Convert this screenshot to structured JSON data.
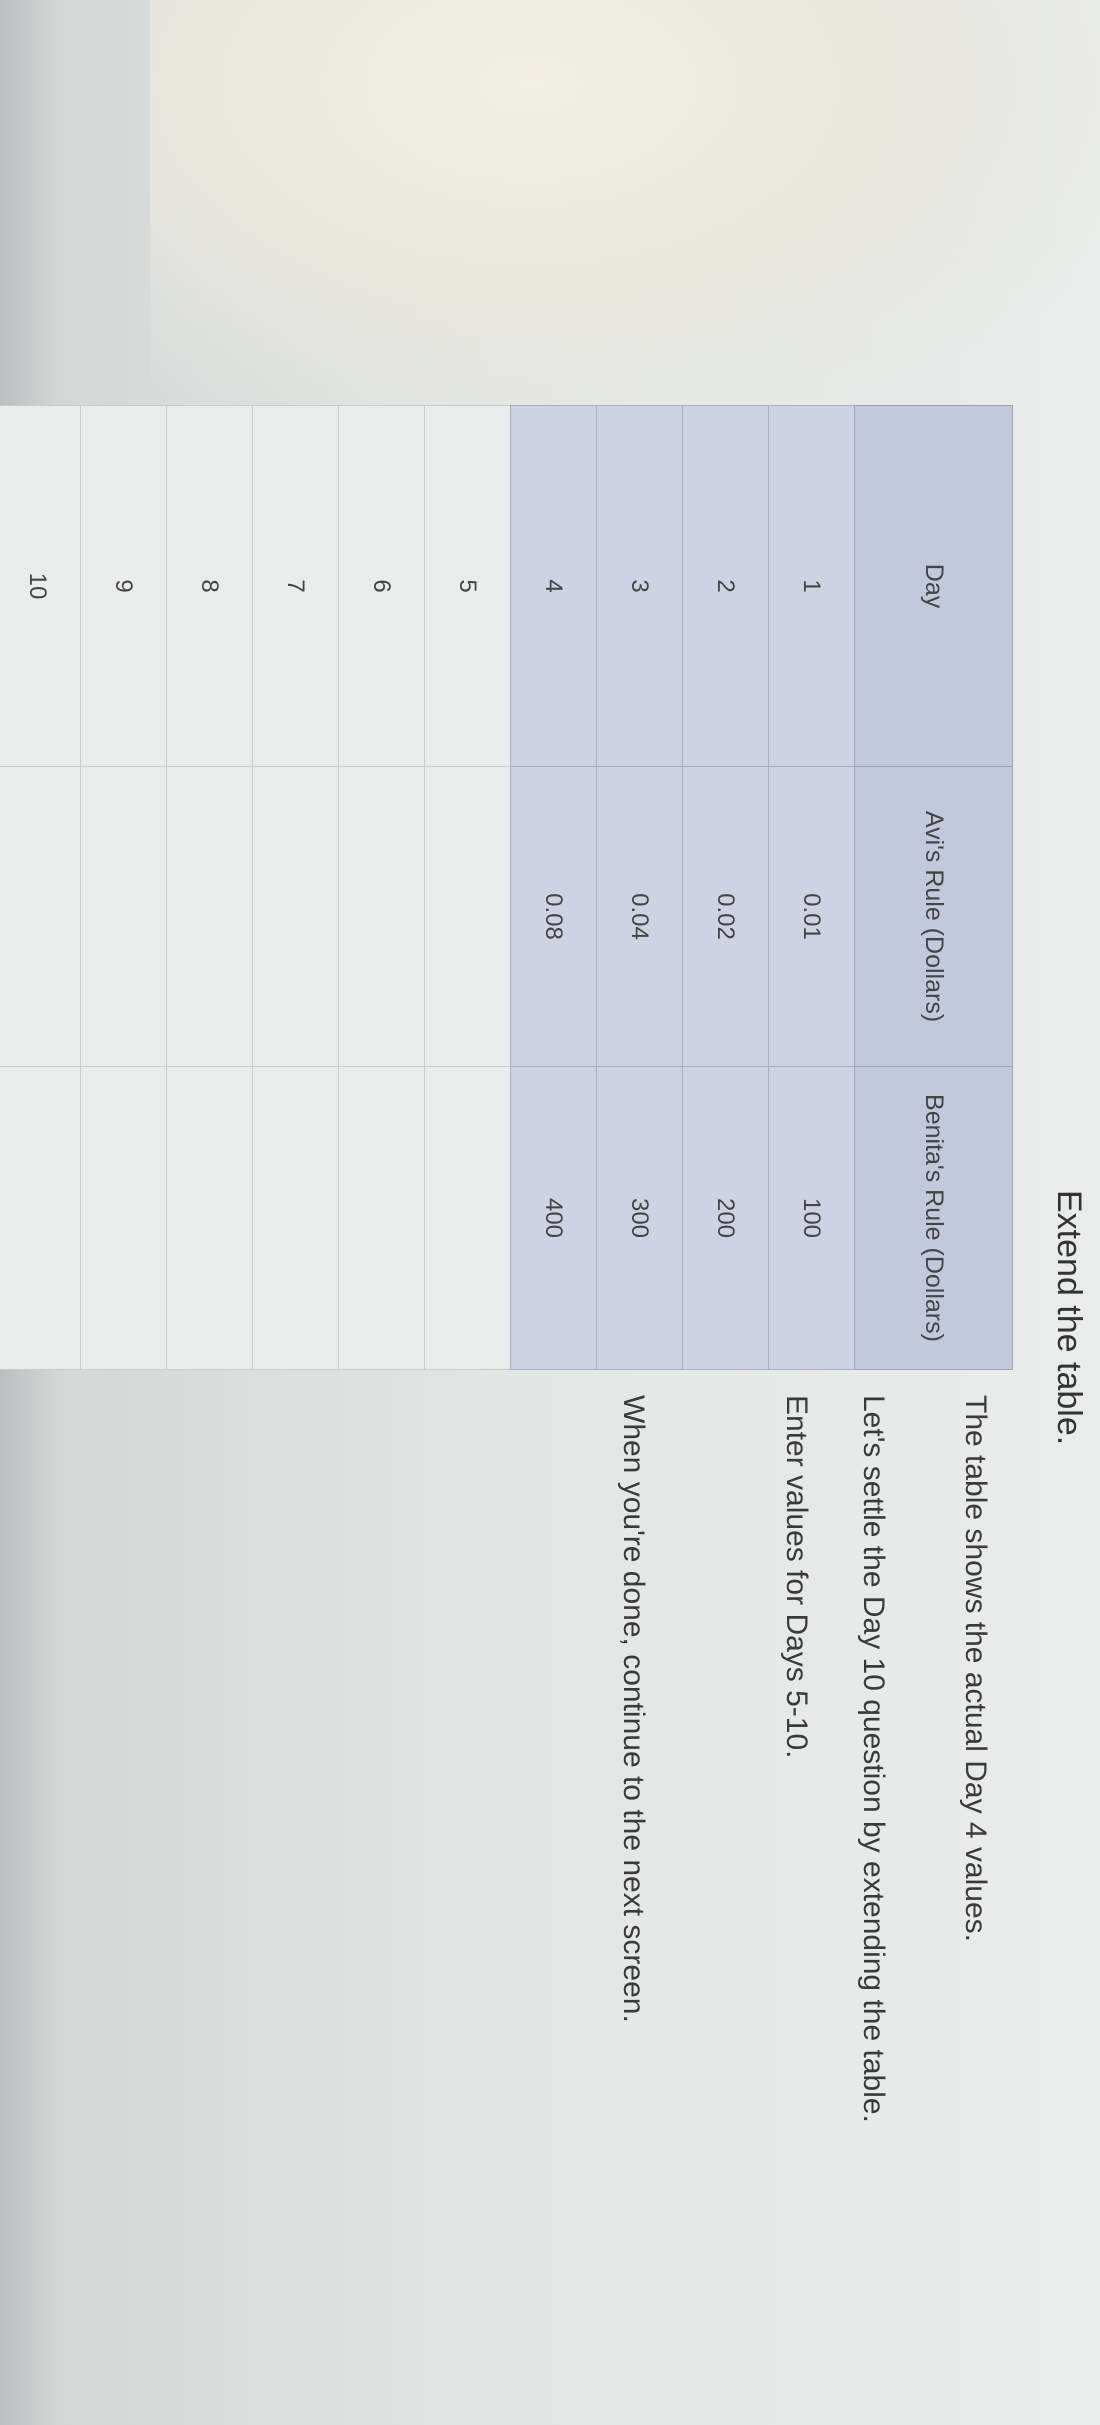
{
  "title": "Extend the table.",
  "instructions": [
    "The table shows the actual Day 4 values.",
    "Let's settle the Day 10 question by extending the table.",
    "Enter values for Days 5-10.",
    "When you're done, continue to the next screen."
  ],
  "table": {
    "headers": [
      "Day",
      "Avi's Rule (Dollars)",
      "Benita's Rule (Dollars)"
    ],
    "rows": [
      {
        "day": "1",
        "avi": "0.01",
        "benita": "100"
      },
      {
        "day": "2",
        "avi": "0.02",
        "benita": "200"
      },
      {
        "day": "3",
        "avi": "0.04",
        "benita": "300"
      },
      {
        "day": "4",
        "avi": "0.08",
        "benita": "400"
      },
      {
        "day": "5",
        "avi": "",
        "benita": ""
      },
      {
        "day": "6",
        "avi": "",
        "benita": ""
      },
      {
        "day": "7",
        "avi": "",
        "benita": ""
      },
      {
        "day": "8",
        "avi": "",
        "benita": ""
      },
      {
        "day": "9",
        "avi": "",
        "benita": ""
      },
      {
        "day": "10",
        "avi": "",
        "benita": ""
      }
    ]
  },
  "colors": {
    "header_bg": "#c2c9dc",
    "given_row_bg": "#cdd3e3"
  }
}
